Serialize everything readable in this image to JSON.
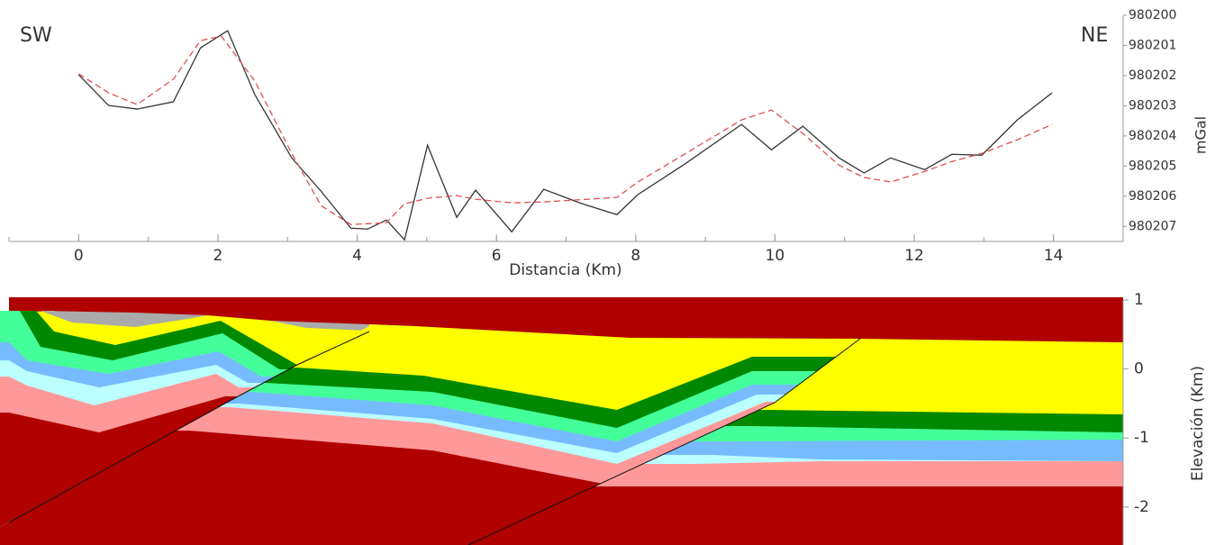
{
  "chart_data": [
    {
      "type": "line",
      "annotations": [
        "SW",
        "NE"
      ],
      "xlabel": "Distancia (Km)",
      "ylabel": "mGal",
      "xlim": [
        -1,
        15
      ],
      "xticks": [
        0,
        2,
        4,
        6,
        8,
        10,
        12,
        14
      ],
      "ylim": [
        980207.5,
        980200
      ],
      "yticks": [
        980200,
        980201,
        980202,
        980203,
        980204,
        980205,
        980206,
        980207
      ],
      "series": [
        {
          "color": "#333333",
          "dashed": false,
          "x": [
            0,
            0.43,
            0.84,
            1.36,
            1.75,
            2.14,
            2.53,
            3.06,
            3.48,
            3.91,
            4.15,
            4.42,
            4.68,
            5.01,
            5.43,
            5.7,
            6.22,
            6.68,
            7.23,
            7.73,
            8.03,
            8.72,
            9.52,
            9.95,
            10.4,
            10.92,
            11.28,
            11.66,
            12.15,
            12.54,
            12.97,
            13.48,
            13.98
          ],
          "values": [
            980201.97,
            980202.99,
            980203.11,
            980202.87,
            980201.08,
            980200.51,
            980202.63,
            980204.73,
            980205.83,
            980207.06,
            980207.09,
            980206.79,
            980207.45,
            980204.31,
            980206.7,
            980205.8,
            980207.18,
            980205.77,
            980206.25,
            980206.61,
            980205.95,
            980204.91,
            980203.62,
            980204.46,
            980203.68,
            980204.73,
            980205.23,
            980204.73,
            980205.12,
            980204.61,
            980204.64,
            980203.47,
            980202.57
          ]
        },
        {
          "color": "#e05050",
          "dashed": true,
          "x": [
            0,
            0.43,
            0.84,
            1.36,
            1.75,
            2.05,
            2.53,
            3.06,
            3.48,
            3.91,
            4.42,
            4.68,
            5.01,
            5.43,
            5.7,
            6.22,
            6.68,
            7.73,
            8.03,
            8.72,
            9.52,
            9.95,
            10.4,
            10.92,
            11.28,
            11.66,
            12.15,
            12.54,
            12.97,
            13.48,
            13.98
          ],
          "values": [
            980201.94,
            980202.57,
            980202.96,
            980202.12,
            980200.84,
            980200.69,
            980202.18,
            980204.58,
            980206.31,
            980206.94,
            980206.88,
            980206.25,
            980206.07,
            980205.98,
            980206.1,
            980206.22,
            980206.19,
            980206.04,
            980205.53,
            980204.58,
            980203.47,
            980203.14,
            980203.92,
            980204.97,
            980205.38,
            980205.53,
            980205.18,
            980204.85,
            980204.58,
            980204.13,
            980203.62
          ]
        }
      ]
    },
    {
      "type": "section",
      "ylabel": "Elevación (Km)",
      "ylim": [
        -2.55,
        1
      ],
      "yticks": [
        1,
        0,
        -1,
        -2
      ]
    }
  ]
}
